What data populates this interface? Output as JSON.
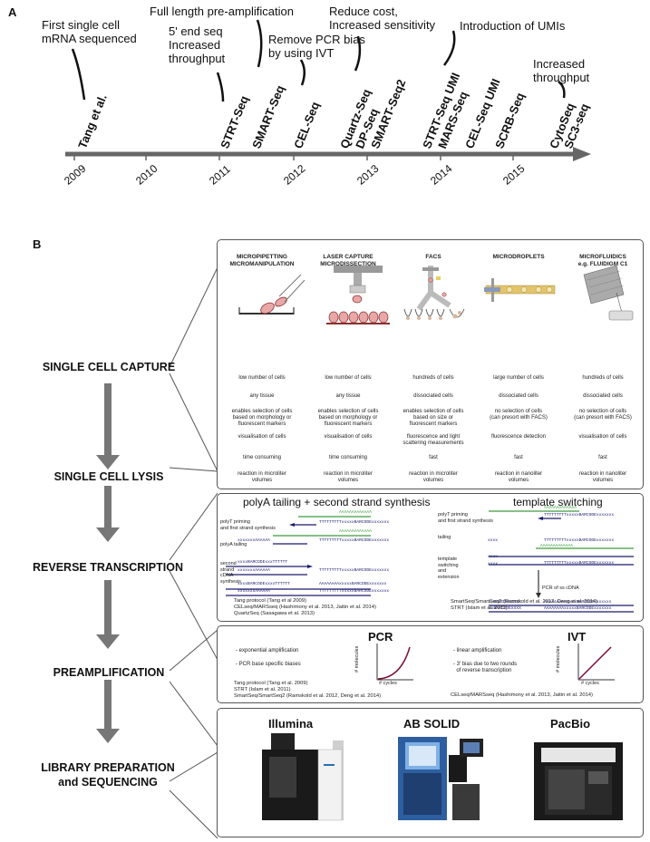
{
  "panel_a": {
    "letter": "A",
    "milestones": [
      {
        "text": "First single cell\nmRNA sequenced"
      },
      {
        "text": "5' end seq\nIncreased\nthroughput"
      },
      {
        "text": "Full length pre-amplification"
      },
      {
        "text": "Remove PCR bias\nby using IVT"
      },
      {
        "text": "Reduce cost,\nIncreased sensitivity"
      },
      {
        "text": "Introduction of UMIs"
      },
      {
        "text": "Increased\nthroughput"
      }
    ],
    "techs": [
      "Tang et al.",
      "STRT-Seq",
      "SMART-Seq",
      "CEL-Seq",
      "Quartz-Seq",
      "DP-Seq",
      "SMART-Seq2",
      "STRT-Seq UMI",
      "MARS-Seq",
      "CEL-Seq UMI",
      "SCRB-Seq",
      "CytoSeq",
      "SC3-seq"
    ],
    "years": [
      "2009",
      "2010",
      "2011",
      "2012",
      "2013",
      "2014",
      "2015"
    ]
  },
  "panel_b": {
    "letter": "B",
    "steps": [
      "SINGLE CELL CAPTURE",
      "SINGLE CELL LYSIS",
      "REVERSE TRANSCRIPTION",
      "PREAMPLIFICATION",
      "LIBRARY PREPARATION\nand SEQUENCING"
    ],
    "capture": {
      "columns": [
        {
          "header": "MICROPIPETTING\nMICROMANIPULATION",
          "rows": [
            "low number of cells",
            "any tissue",
            "enables selection of cells\nbased on morphology or\nfluorescent markers",
            "visualisation of cells",
            "time consuming",
            "reaction in microliter\nvolumes"
          ]
        },
        {
          "header": "LASER CAPTURE\nMICRODISSECTION",
          "rows": [
            "low number of cells",
            "any tissue",
            "enables selection of cells\nbased on morphology or\nfluorescent markers",
            "visualisation of cells",
            "time consuming",
            "reaction in microliter\nvolumes"
          ]
        },
        {
          "header": "FACS",
          "rows": [
            "hundreds of cells",
            "dissociated cells",
            "enables selection of cells\nbased on size or\nfluorescent markers",
            "fluorescence and light\nscattering measurements",
            "fast",
            "reaction in microliter\nvolumes"
          ]
        },
        {
          "header": "MICRODROPLETS",
          "rows": [
            "large number of cells",
            "dissociated cells",
            "no selection of cells\n(can presort with FACS)",
            "fluorescence detection",
            "fast",
            "reaction in nanoliter\nvolumes"
          ]
        },
        {
          "header": "MICROFLUIDICS\ne.g. FLUIDIGM C1",
          "rows": [
            "hundreds of cells",
            "dissociated cells",
            "no selection of cells\n(can presort with FACS)",
            "visualisation of cells",
            "fast",
            "reaction in nanoliter\nvolumes"
          ]
        }
      ]
    },
    "rt": {
      "left_title": "polyA tailing + second strand synthesis",
      "right_title": "template switching",
      "left_labels": [
        "polyT priming\nand first strand synthesis",
        "polyA tailing",
        "second\nstrand\ncDNA\nsynthesis"
      ],
      "right_labels": [
        "polyT priming\nand first strand synthesis",
        "tailing",
        "template\nswitching\nand\nextension",
        "PCR of ss cDNA"
      ],
      "seq_polyA": "AAAAAAAAAAAAA",
      "seq_polyT_barcode": "TTTTTTTTTxxxxxBARCODExxxxxxx",
      "seq_xA": "xxxxxxxAAAAAA",
      "seq_xbar": "xxxxBARCODExxxTTTTTT",
      "seq_xbarA": "xxxxBARCODExxxxTTTTTT",
      "seq_full": "AAAAAAAAxxxxxBARCODExxxxxxx",
      "seq_xx": "xxxx",
      "seq_xxxx2": "xxxx\nxxxx",
      "seq_pcr1": "xxBARCODEXXXX",
      "seq_pcr2": "xxBARCODEXXXX",
      "left_refs": "Tang protocol (Tang et al 2009)\nCELseq/MARSseq (Hashimony et al. 2013, Jaitin et al. 2014)\nQuartzSeq (Sasagawa et al. 2013)",
      "right_refs": "SmartSeq/SmartSeq2 (Ramskold et al. 2012, Deng et al. 2014)\nSTRT (Islam et al. 2011)"
    },
    "preamp": {
      "left_title": "PCR",
      "right_title": "IVT",
      "left_points": [
        "- exponential amplification",
        "- PCR base specific biases"
      ],
      "right_points": [
        "- linear amplification",
        "- 3' bias due to two rounds\n  of reverse transcription"
      ],
      "ylabel": "# molecules",
      "xlabel": "# cycles",
      "left_refs": "Tang protocol (Tang et al. 2009)\nSTRT (Islam et al. 2011)\nSmartSeq/SmartSeq2 (Ramskold et al. 2012, Deng et al. 2014)",
      "right_refs": "CELseq/MARSseq (Hashimony et al. 2013, Jaitin et al. 2014)"
    },
    "sequencing": {
      "platforms": [
        "Illumina",
        "AB SOLID",
        "PacBio"
      ]
    }
  },
  "colors": {
    "arrow": "#666666",
    "dark_arrow": "#555555",
    "green": "#3d9a3d",
    "navy": "#1a1a6e",
    "curve": "#7a0d3a"
  }
}
